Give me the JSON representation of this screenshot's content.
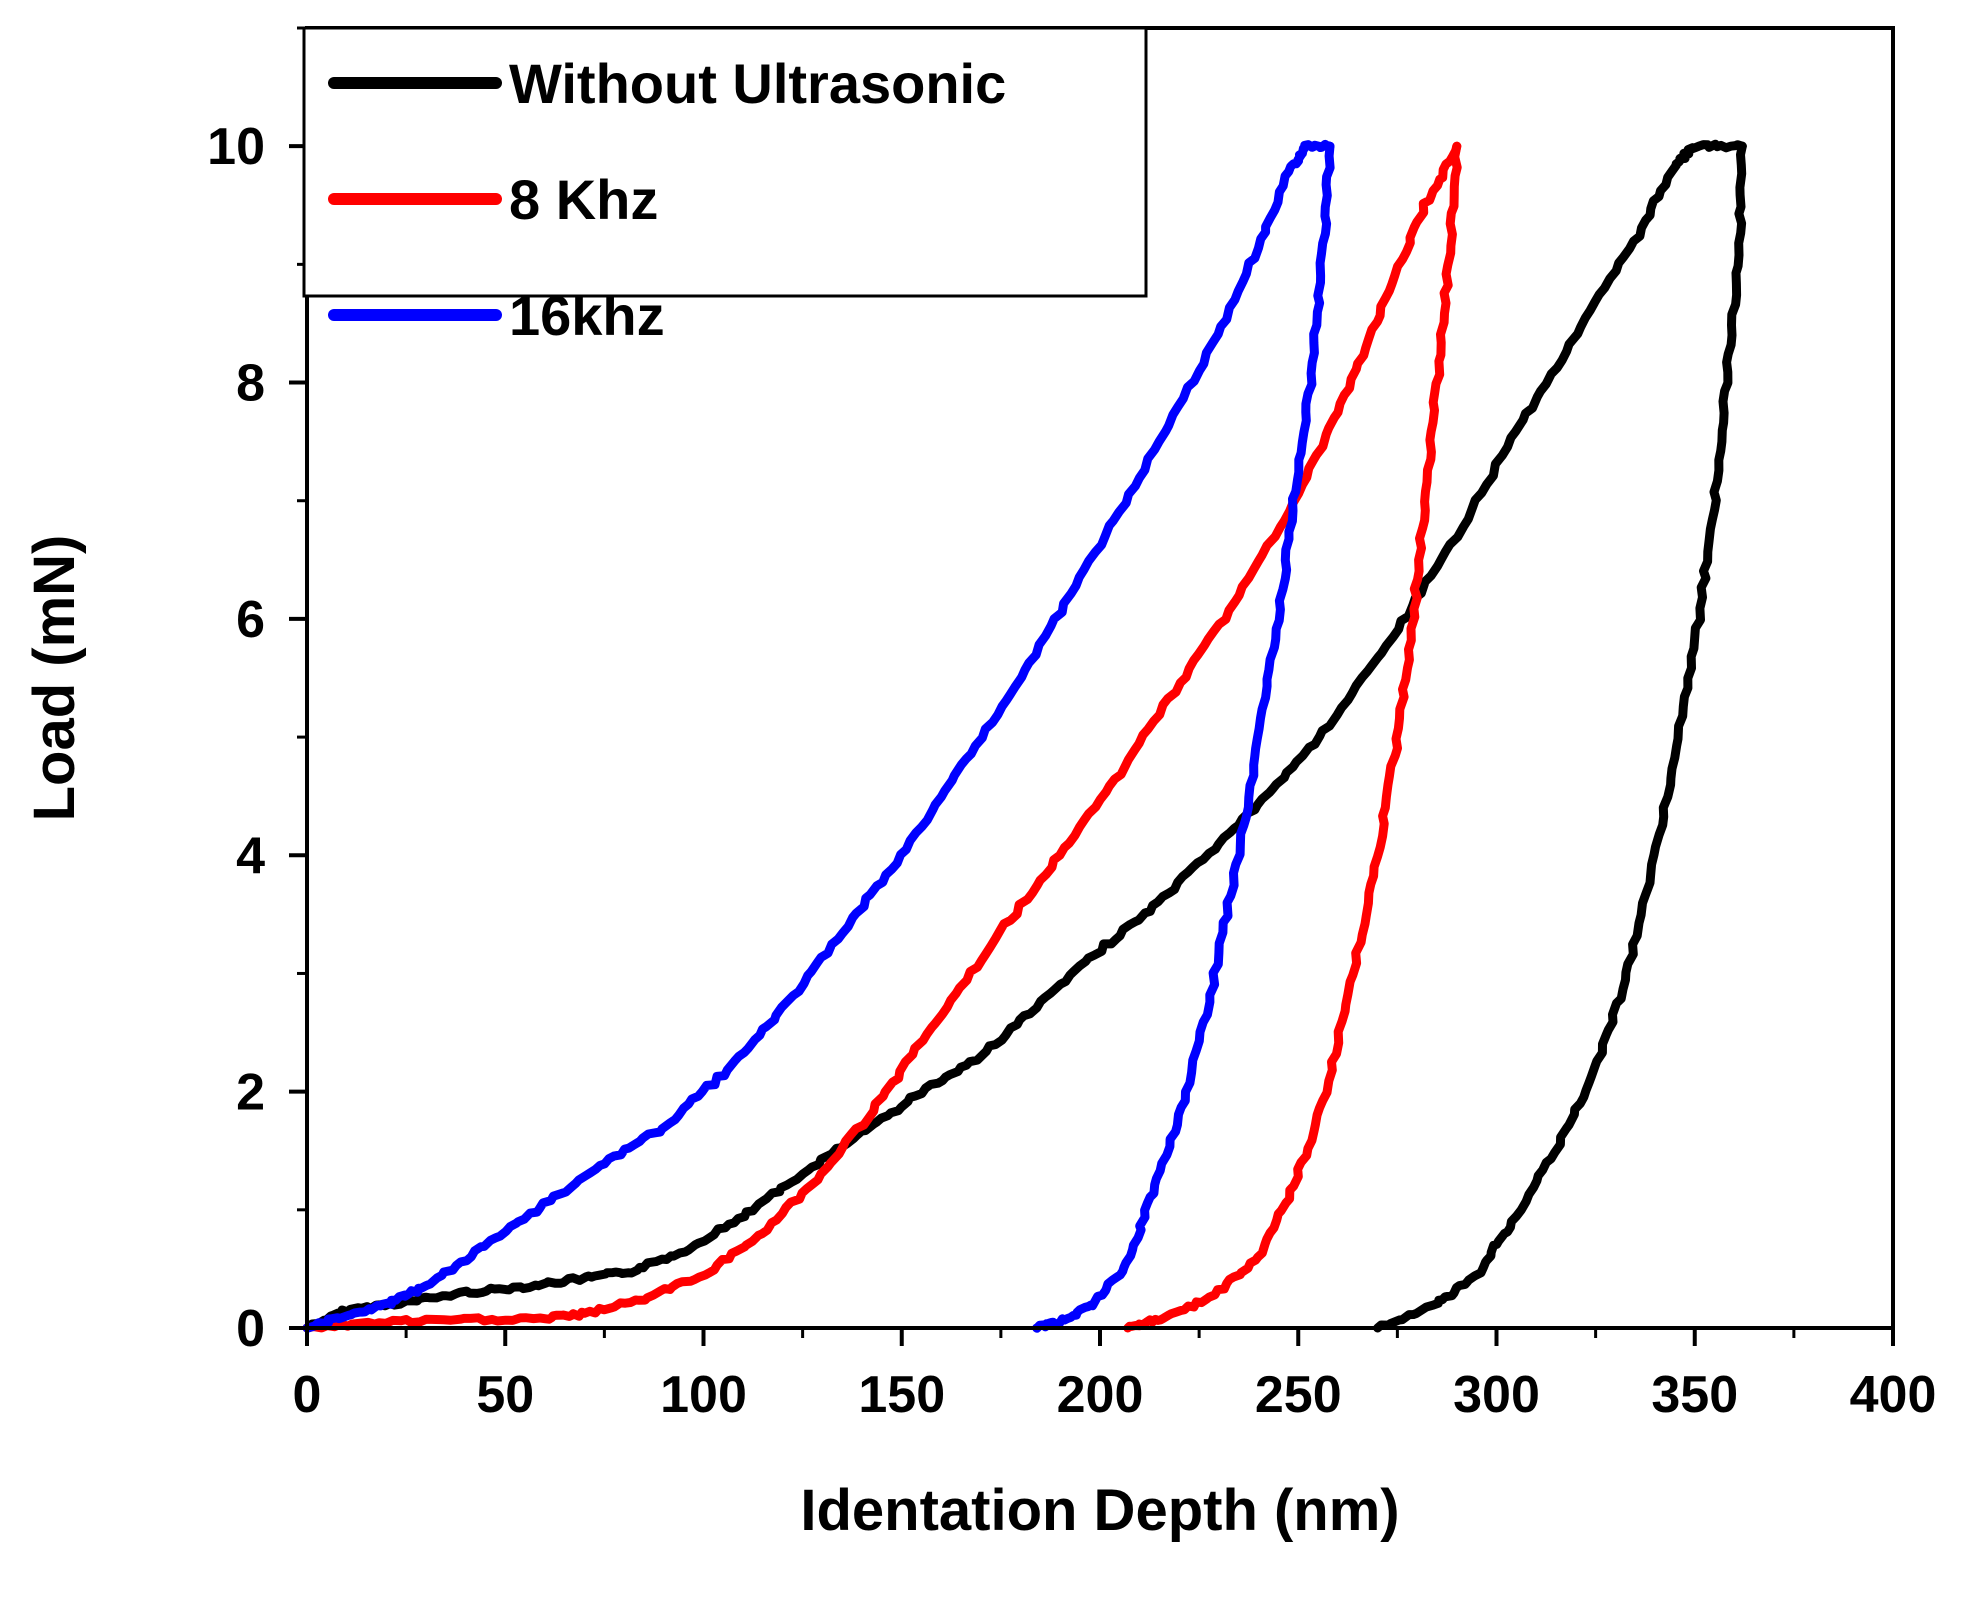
{
  "chart_data": {
    "type": "line",
    "title": "",
    "xlabel": "Identation Depth (nm)",
    "ylabel": "Load (mN)",
    "xlim": [
      0,
      400
    ],
    "ylim": [
      0,
      11
    ],
    "x_ticks": [
      "0",
      "50",
      "100",
      "150",
      "200",
      "250",
      "300",
      "350",
      "400"
    ],
    "x_tick_values": [
      0,
      50,
      100,
      150,
      200,
      250,
      300,
      350,
      400
    ],
    "y_ticks": [
      "0",
      "2",
      "4",
      "6",
      "8",
      "10"
    ],
    "y_tick_values": [
      0,
      2,
      4,
      6,
      8,
      10
    ],
    "grid": false,
    "legend_position": "top-left",
    "series": [
      {
        "name": "Without Ultrasonic",
        "color": "#000000",
        "loading": [
          [
            0,
            0
          ],
          [
            10,
            0.15
          ],
          [
            25,
            0.22
          ],
          [
            40,
            0.3
          ],
          [
            55,
            0.35
          ],
          [
            70,
            0.42
          ],
          [
            82,
            0.48
          ],
          [
            95,
            0.65
          ],
          [
            110,
            0.95
          ],
          [
            125,
            1.3
          ],
          [
            140,
            1.65
          ],
          [
            155,
            2.0
          ],
          [
            170,
            2.3
          ],
          [
            185,
            2.75
          ],
          [
            200,
            3.2
          ],
          [
            215,
            3.6
          ],
          [
            230,
            4.1
          ],
          [
            245,
            4.6
          ],
          [
            260,
            5.2
          ],
          [
            275,
            5.9
          ],
          [
            290,
            6.7
          ],
          [
            305,
            7.6
          ],
          [
            320,
            8.4
          ],
          [
            335,
            9.2
          ],
          [
            345,
            9.85
          ],
          [
            350,
            10.0
          ],
          [
            362,
            10.0
          ]
        ],
        "unloading": [
          [
            362,
            10.0
          ],
          [
            361,
            9.0
          ],
          [
            358,
            8.0
          ],
          [
            355,
            7.0
          ],
          [
            351,
            6.0
          ],
          [
            346,
            5.0
          ],
          [
            340,
            4.0
          ],
          [
            333,
            3.0
          ],
          [
            325,
            2.2
          ],
          [
            315,
            1.5
          ],
          [
            303,
            0.85
          ],
          [
            295,
            0.45
          ],
          [
            285,
            0.2
          ],
          [
            270,
            0.0
          ]
        ]
      },
      {
        "name": "8 Khz",
        "color": "#ff0000",
        "loading": [
          [
            0,
            0
          ],
          [
            20,
            0.05
          ],
          [
            40,
            0.07
          ],
          [
            60,
            0.08
          ],
          [
            70,
            0.12
          ],
          [
            85,
            0.25
          ],
          [
            100,
            0.45
          ],
          [
            115,
            0.8
          ],
          [
            130,
            1.3
          ],
          [
            145,
            1.95
          ],
          [
            160,
            2.65
          ],
          [
            175,
            3.35
          ],
          [
            190,
            4.0
          ],
          [
            205,
            4.7
          ],
          [
            220,
            5.45
          ],
          [
            235,
            6.2
          ],
          [
            250,
            7.05
          ],
          [
            262,
            7.9
          ],
          [
            272,
            8.7
          ],
          [
            282,
            9.5
          ],
          [
            290,
            10.0
          ]
        ],
        "unloading": [
          [
            290,
            10.0
          ],
          [
            288,
            9.0
          ],
          [
            285,
            8.0
          ],
          [
            282,
            7.0
          ],
          [
            279,
            6.0
          ],
          [
            275,
            5.0
          ],
          [
            270,
            4.0
          ],
          [
            264,
            3.0
          ],
          [
            257,
            2.0
          ],
          [
            249,
            1.2
          ],
          [
            240,
            0.6
          ],
          [
            228,
            0.25
          ],
          [
            215,
            0.08
          ],
          [
            207,
            0.0
          ]
        ]
      },
      {
        "name": "16khz",
        "color": "#0000ff",
        "loading": [
          [
            0,
            0
          ],
          [
            10,
            0.1
          ],
          [
            20,
            0.2
          ],
          [
            30,
            0.35
          ],
          [
            45,
            0.7
          ],
          [
            60,
            1.05
          ],
          [
            75,
            1.4
          ],
          [
            90,
            1.7
          ],
          [
            105,
            2.15
          ],
          [
            120,
            2.7
          ],
          [
            135,
            3.35
          ],
          [
            150,
            4.0
          ],
          [
            165,
            4.75
          ],
          [
            180,
            5.5
          ],
          [
            195,
            6.35
          ],
          [
            210,
            7.2
          ],
          [
            225,
            8.1
          ],
          [
            238,
            9.0
          ],
          [
            248,
            9.8
          ],
          [
            252,
            10.0
          ],
          [
            258,
            10.0
          ]
        ],
        "unloading": [
          [
            258,
            10.0
          ],
          [
            256,
            9.0
          ],
          [
            253,
            8.0
          ],
          [
            249,
            7.0
          ],
          [
            245,
            6.0
          ],
          [
            240,
            5.0
          ],
          [
            235,
            4.0
          ],
          [
            229,
            3.0
          ],
          [
            222,
            2.0
          ],
          [
            214,
            1.2
          ],
          [
            207,
            0.55
          ],
          [
            198,
            0.2
          ],
          [
            190,
            0.05
          ],
          [
            184,
            0.0
          ]
        ]
      }
    ]
  }
}
